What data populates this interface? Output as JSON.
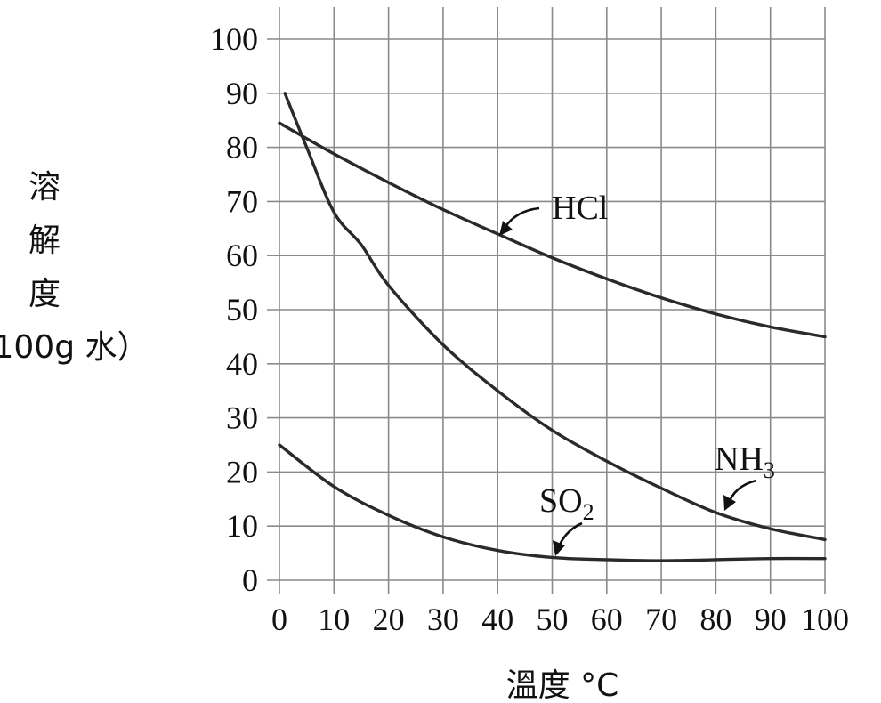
{
  "chart_data": {
    "type": "line",
    "title": "",
    "xlabel": "溫度 °C",
    "ylabel_chars": [
      "溶",
      "解",
      "度"
    ],
    "ylabel_unit": "100g 水）",
    "xlim": [
      0,
      100
    ],
    "ylim": [
      0,
      100
    ],
    "xticks": [
      0,
      10,
      20,
      30,
      40,
      50,
      60,
      70,
      80,
      90,
      100
    ],
    "yticks": [
      0,
      10,
      20,
      30,
      40,
      50,
      60,
      70,
      80,
      90,
      100
    ],
    "grid": true,
    "series": [
      {
        "name": "HCl",
        "x": [
          0,
          10,
          20,
          30,
          40,
          50,
          60,
          70,
          80,
          90,
          100
        ],
        "y": [
          84.5,
          78.8,
          73.5,
          68.5,
          64,
          59.6,
          55.7,
          52.2,
          49.2,
          46.8,
          45
        ]
      },
      {
        "name": "NH3",
        "x": [
          1,
          5,
          10,
          15,
          20,
          30,
          40,
          50,
          60,
          70,
          80,
          90,
          100
        ],
        "y": [
          90,
          80,
          68,
          62,
          54.5,
          43.5,
          35,
          27.7,
          22,
          17,
          12.5,
          9.5,
          7.5
        ]
      },
      {
        "name": "SO2",
        "x": [
          0,
          10,
          20,
          30,
          40,
          50,
          60,
          70,
          80,
          90,
          100
        ],
        "y": [
          25,
          17.3,
          12,
          8,
          5.5,
          4.2,
          3.8,
          3.6,
          3.8,
          4,
          4
        ]
      }
    ],
    "labels": {
      "hcl": {
        "main": "HCl",
        "sub": ""
      },
      "nh3": {
        "main": "NH",
        "sub": "3"
      },
      "so2": {
        "main": "SO",
        "sub": "2"
      }
    }
  }
}
